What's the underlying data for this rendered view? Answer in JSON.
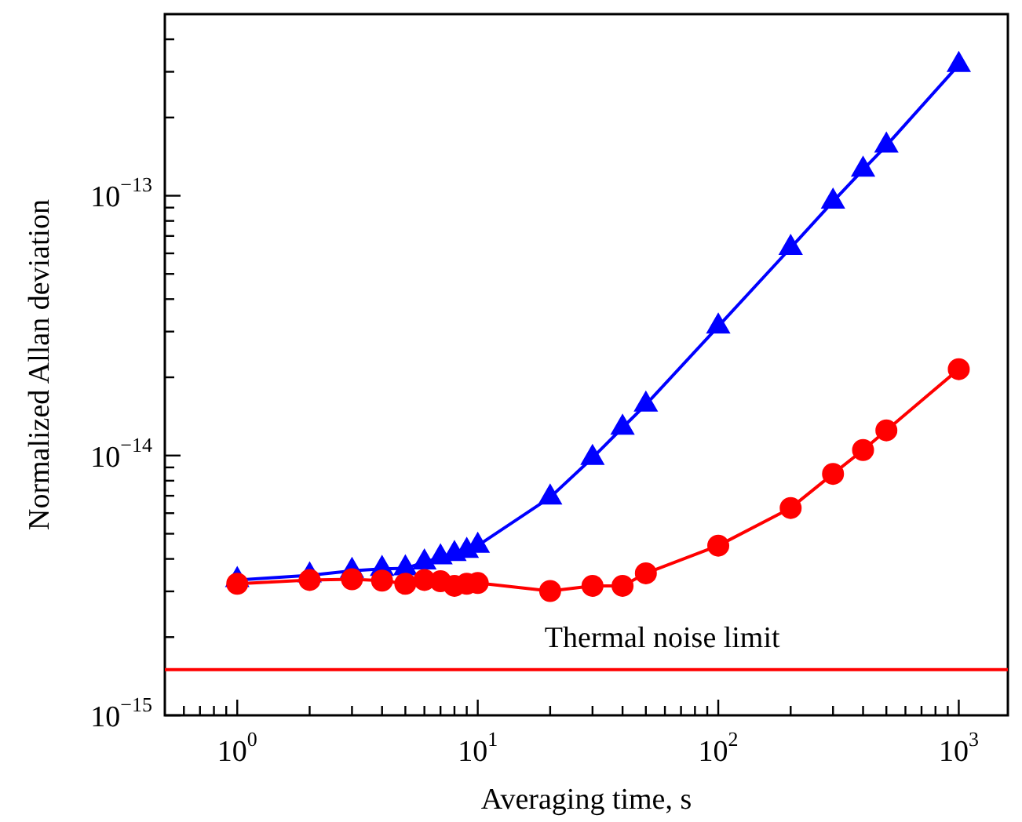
{
  "chart_data": {
    "type": "line",
    "xlabel": "Averaging time, s",
    "ylabel": "Normalized Allan deviation",
    "log": "xy",
    "grid": false,
    "legend": false,
    "x": [
      1,
      2,
      3,
      4,
      5,
      6,
      7,
      8,
      9,
      10,
      20,
      30,
      40,
      50,
      100,
      200,
      300,
      400,
      500,
      1000
    ],
    "series": [
      {
        "color": "#0000ff",
        "marker": "triangle",
        "values": [
          3.32e-15,
          3.46e-15,
          3.6e-15,
          3.66e-15,
          3.68e-15,
          3.88e-15,
          4.06e-15,
          4.18e-15,
          4.3e-15,
          4.5e-15,
          6.9e-15,
          9.8e-15,
          1.28e-14,
          1.57e-14,
          3.14e-14,
          6.3e-14,
          9.5e-14,
          1.26e-13,
          1.56e-13,
          3.19e-13
        ]
      },
      {
        "color": "#ff0000",
        "marker": "circle",
        "values": [
          3.21e-15,
          3.32e-15,
          3.34e-15,
          3.3e-15,
          3.21e-15,
          3.32e-15,
          3.28e-15,
          3.15e-15,
          3.21e-15,
          3.23e-15,
          3.01e-15,
          3.15e-15,
          3.15e-15,
          3.52e-15,
          4.5e-15,
          6.28e-15,
          8.5e-15,
          1.05e-14,
          1.25e-14,
          2.15e-14
        ]
      }
    ],
    "xlim": [
      0.5,
      1600
    ],
    "ylim": [
      1e-15,
      5e-13
    ],
    "xticks": [
      {
        "value": 0.6,
        "label": null
      },
      {
        "value": 0.7,
        "label": null
      },
      {
        "value": 0.8,
        "label": null
      },
      {
        "value": 0.9,
        "label": null
      },
      {
        "value": 1,
        "label": "10$^{0}$"
      },
      {
        "value": 2,
        "label": null
      },
      {
        "value": 3,
        "label": null
      },
      {
        "value": 4,
        "label": null
      },
      {
        "value": 5,
        "label": null
      },
      {
        "value": 6,
        "label": null
      },
      {
        "value": 7,
        "label": null
      },
      {
        "value": 8,
        "label": null
      },
      {
        "value": 9,
        "label": null
      },
      {
        "value": 10,
        "label": "10$^{1}$"
      },
      {
        "value": 20,
        "label": null
      },
      {
        "value": 30,
        "label": null
      },
      {
        "value": 40,
        "label": null
      },
      {
        "value": 50,
        "label": null
      },
      {
        "value": 60,
        "label": null
      },
      {
        "value": 70,
        "label": null
      },
      {
        "value": 80,
        "label": null
      },
      {
        "value": 90,
        "label": null
      },
      {
        "value": 100,
        "label": "10$^{2}$"
      },
      {
        "value": 200,
        "label": null
      },
      {
        "value": 300,
        "label": null
      },
      {
        "value": 400,
        "label": null
      },
      {
        "value": 500,
        "label": null
      },
      {
        "value": 600,
        "label": null
      },
      {
        "value": 700,
        "label": null
      },
      {
        "value": 800,
        "label": null
      },
      {
        "value": 900,
        "label": null
      },
      {
        "value": 1000,
        "label": "10$^{3}$"
      }
    ],
    "yticks": [
      {
        "value": 1e-15,
        "label": "10$^{−15}$"
      },
      {
        "value": 2e-15,
        "label": null
      },
      {
        "value": 3e-15,
        "label": null
      },
      {
        "value": 4e-15,
        "label": null
      },
      {
        "value": 5e-15,
        "label": null
      },
      {
        "value": 6e-15,
        "label": null
      },
      {
        "value": 7e-15,
        "label": null
      },
      {
        "value": 8e-15,
        "label": null
      },
      {
        "value": 9e-15,
        "label": null
      },
      {
        "value": 1e-14,
        "label": "10$^{−14}$"
      },
      {
        "value": 2e-14,
        "label": null
      },
      {
        "value": 3e-14,
        "label": null
      },
      {
        "value": 4e-14,
        "label": null
      },
      {
        "value": 5e-14,
        "label": null
      },
      {
        "value": 6e-14,
        "label": null
      },
      {
        "value": 7e-14,
        "label": null
      },
      {
        "value": 8e-14,
        "label": null
      },
      {
        "value": 9e-14,
        "label": null
      },
      {
        "value": 1e-13,
        "label": "10$^{−13}$"
      },
      {
        "value": 2e-13,
        "label": null
      },
      {
        "value": 3e-13,
        "label": null
      },
      {
        "value": 4e-13,
        "label": null
      }
    ],
    "ref_lines": [
      {
        "axis": "y",
        "value": 1.5e-15,
        "label": "Thermal noise limit",
        "color": "#ff0000"
      }
    ]
  }
}
